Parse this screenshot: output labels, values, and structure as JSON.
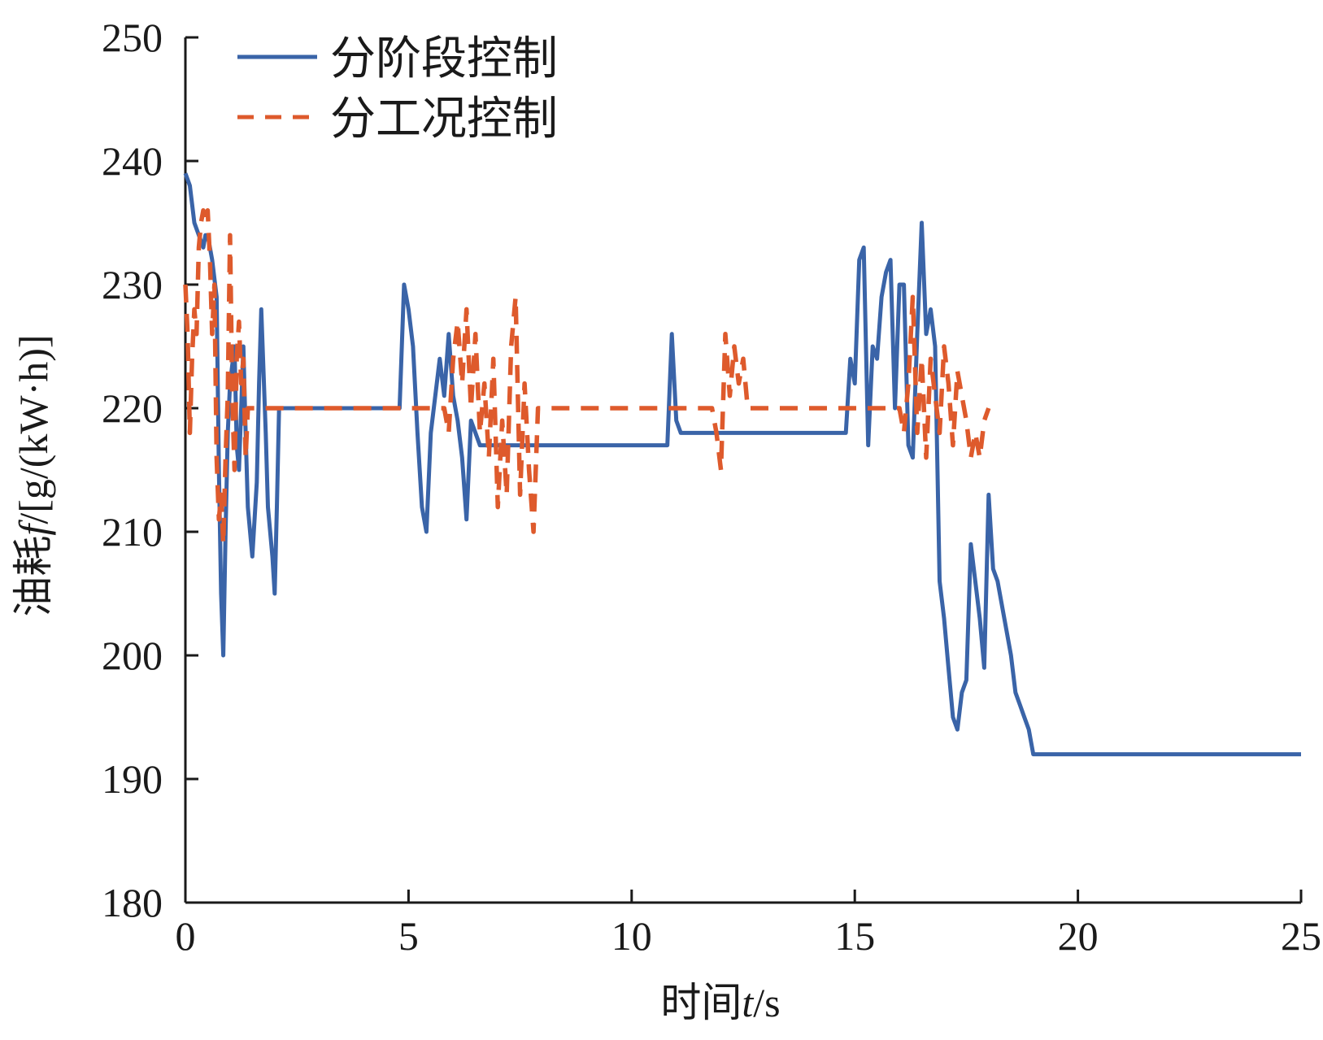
{
  "chart_data": {
    "type": "line",
    "xlabel": {
      "prefix": "时间",
      "symbol": "t",
      "suffix": "/s"
    },
    "ylabel": {
      "prefix": "油耗",
      "symbol": "f",
      "suffix": "/[g/(kW·h)]"
    },
    "xlim": [
      0,
      25
    ],
    "ylim": [
      180,
      250
    ],
    "xticks": [
      0,
      5,
      10,
      15,
      20,
      25
    ],
    "yticks": [
      180,
      190,
      200,
      210,
      220,
      230,
      240,
      250
    ],
    "grid": false,
    "legend_position": "top-left",
    "series": [
      {
        "name": "分阶段控制",
        "color": "#3a64a8",
        "dash": "solid",
        "points": [
          [
            0,
            239
          ],
          [
            0.1,
            238
          ],
          [
            0.2,
            235
          ],
          [
            0.3,
            234
          ],
          [
            0.4,
            233
          ],
          [
            0.45,
            234
          ],
          [
            0.5,
            234
          ],
          [
            0.6,
            232
          ],
          [
            0.7,
            229
          ],
          [
            0.75,
            215
          ],
          [
            0.8,
            205
          ],
          [
            0.85,
            200
          ],
          [
            0.9,
            210
          ],
          [
            0.95,
            218
          ],
          [
            1.0,
            222
          ],
          [
            1.1,
            225
          ],
          [
            1.15,
            217
          ],
          [
            1.2,
            215
          ],
          [
            1.3,
            225
          ],
          [
            1.35,
            218
          ],
          [
            1.4,
            212
          ],
          [
            1.5,
            208
          ],
          [
            1.6,
            214
          ],
          [
            1.65,
            222
          ],
          [
            1.7,
            228
          ],
          [
            1.8,
            218
          ],
          [
            1.85,
            212
          ],
          [
            1.95,
            208
          ],
          [
            2.0,
            205
          ],
          [
            2.05,
            212
          ],
          [
            2.1,
            220
          ],
          [
            4.8,
            220
          ],
          [
            4.9,
            230
          ],
          [
            5.0,
            228
          ],
          [
            5.1,
            225
          ],
          [
            5.2,
            218
          ],
          [
            5.3,
            212
          ],
          [
            5.4,
            210
          ],
          [
            5.5,
            218
          ],
          [
            5.6,
            221
          ],
          [
            5.7,
            224
          ],
          [
            5.8,
            221
          ],
          [
            5.9,
            226
          ],
          [
            6.0,
            221
          ],
          [
            6.1,
            219
          ],
          [
            6.2,
            216
          ],
          [
            6.3,
            211
          ],
          [
            6.4,
            219
          ],
          [
            6.5,
            218
          ],
          [
            6.6,
            217
          ],
          [
            10.8,
            217
          ],
          [
            10.9,
            226
          ],
          [
            11.0,
            219
          ],
          [
            11.1,
            218
          ],
          [
            14.8,
            218
          ],
          [
            14.9,
            224
          ],
          [
            15.0,
            222
          ],
          [
            15.1,
            232
          ],
          [
            15.2,
            233
          ],
          [
            15.3,
            217
          ],
          [
            15.4,
            225
          ],
          [
            15.5,
            224
          ],
          [
            15.6,
            229
          ],
          [
            15.7,
            231
          ],
          [
            15.8,
            232
          ],
          [
            15.9,
            220
          ],
          [
            16.0,
            230
          ],
          [
            16.1,
            230
          ],
          [
            16.2,
            217
          ],
          [
            16.3,
            216
          ],
          [
            16.4,
            226
          ],
          [
            16.5,
            235
          ],
          [
            16.6,
            226
          ],
          [
            16.7,
            228
          ],
          [
            16.8,
            225
          ],
          [
            16.9,
            206
          ],
          [
            17.0,
            203
          ],
          [
            17.1,
            199
          ],
          [
            17.2,
            195
          ],
          [
            17.3,
            194
          ],
          [
            17.4,
            197
          ],
          [
            17.5,
            198
          ],
          [
            17.6,
            209
          ],
          [
            17.7,
            206
          ],
          [
            17.8,
            203
          ],
          [
            17.9,
            199
          ],
          [
            18.0,
            213
          ],
          [
            18.1,
            207
          ],
          [
            18.2,
            206
          ],
          [
            18.4,
            202
          ],
          [
            18.5,
            200
          ],
          [
            18.6,
            197
          ],
          [
            18.7,
            196
          ],
          [
            18.8,
            195
          ],
          [
            18.9,
            194
          ],
          [
            19.0,
            192
          ],
          [
            25,
            192
          ]
        ]
      },
      {
        "name": "分工况控制",
        "color": "#de5a2c",
        "dash": "dashed",
        "points": [
          [
            0,
            230
          ],
          [
            0.05,
            226
          ],
          [
            0.1,
            218
          ],
          [
            0.15,
            224
          ],
          [
            0.2,
            228
          ],
          [
            0.25,
            226
          ],
          [
            0.3,
            233
          ],
          [
            0.35,
            235
          ],
          [
            0.4,
            236
          ],
          [
            0.45,
            235
          ],
          [
            0.5,
            236
          ],
          [
            0.55,
            232
          ],
          [
            0.6,
            226
          ],
          [
            0.65,
            230
          ],
          [
            0.7,
            216
          ],
          [
            0.75,
            211
          ],
          [
            0.8,
            213
          ],
          [
            0.85,
            209
          ],
          [
            0.9,
            216
          ],
          [
            0.95,
            221
          ],
          [
            1.0,
            234
          ],
          [
            1.05,
            221
          ],
          [
            1.1,
            215
          ],
          [
            1.15,
            224
          ],
          [
            1.2,
            227
          ],
          [
            1.25,
            222
          ],
          [
            1.3,
            224
          ],
          [
            1.35,
            216
          ],
          [
            1.4,
            220
          ],
          [
            1.5,
            220
          ],
          [
            5.8,
            220
          ],
          [
            5.9,
            218
          ],
          [
            6.0,
            224
          ],
          [
            6.1,
            227
          ],
          [
            6.2,
            222
          ],
          [
            6.3,
            228
          ],
          [
            6.4,
            220
          ],
          [
            6.5,
            226
          ],
          [
            6.6,
            218
          ],
          [
            6.7,
            222
          ],
          [
            6.8,
            216
          ],
          [
            6.9,
            224
          ],
          [
            7.0,
            212
          ],
          [
            7.1,
            219
          ],
          [
            7.2,
            213
          ],
          [
            7.3,
            225
          ],
          [
            7.4,
            229
          ],
          [
            7.5,
            213
          ],
          [
            7.6,
            222
          ],
          [
            7.7,
            215
          ],
          [
            7.8,
            210
          ],
          [
            7.9,
            220
          ],
          [
            11.8,
            220
          ],
          [
            11.9,
            218
          ],
          [
            12.0,
            215
          ],
          [
            12.1,
            226
          ],
          [
            12.2,
            221
          ],
          [
            12.3,
            225
          ],
          [
            12.4,
            222
          ],
          [
            12.5,
            224
          ],
          [
            12.6,
            220
          ],
          [
            16.0,
            220
          ],
          [
            16.1,
            218
          ],
          [
            16.2,
            222
          ],
          [
            16.3,
            229
          ],
          [
            16.4,
            218
          ],
          [
            16.5,
            224
          ],
          [
            16.6,
            216
          ],
          [
            16.7,
            224
          ],
          [
            16.8,
            221
          ],
          [
            16.9,
            218
          ],
          [
            17.0,
            225
          ],
          [
            17.1,
            222
          ],
          [
            17.2,
            217
          ],
          [
            17.3,
            223
          ],
          [
            17.4,
            221
          ],
          [
            17.5,
            219
          ],
          [
            17.6,
            216
          ],
          [
            17.7,
            218
          ],
          [
            17.8,
            216
          ],
          [
            17.9,
            219
          ],
          [
            18.0,
            220
          ]
        ]
      }
    ]
  }
}
